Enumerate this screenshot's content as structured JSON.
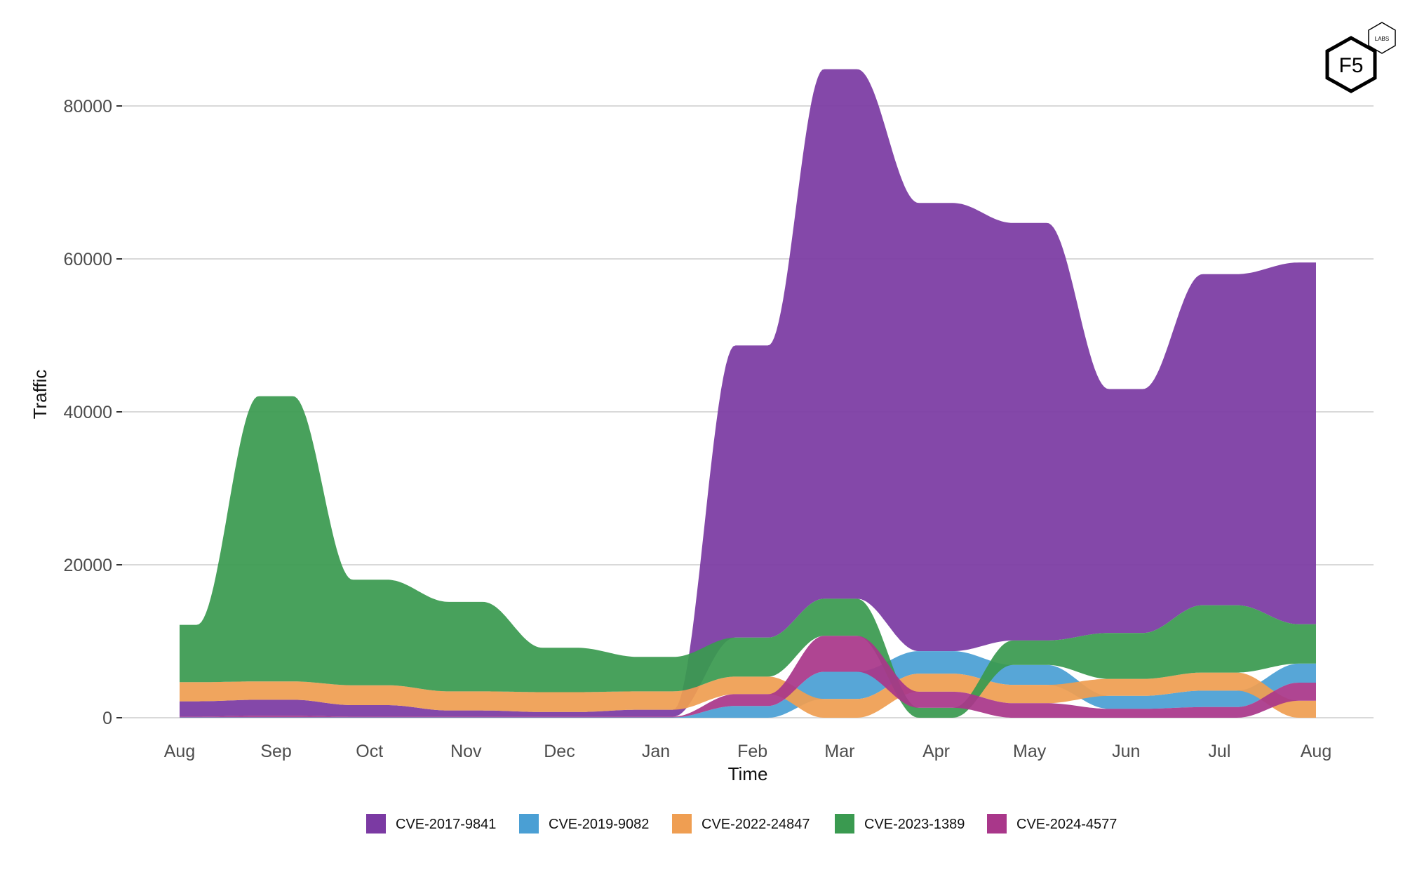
{
  "chart_data": {
    "type": "area",
    "style": "ranked stacked stream (largest on top each month)",
    "xlabel": "Time",
    "ylabel": "Traffic",
    "x": [
      "Aug",
      "Sep",
      "Oct",
      "Nov",
      "Dec",
      "Jan",
      "Feb",
      "Mar",
      "Apr",
      "May",
      "Jun",
      "Jul",
      "Aug"
    ],
    "x_days": [
      0,
      31,
      61,
      92,
      122,
      153,
      184,
      212,
      243,
      273,
      304,
      334,
      365
    ],
    "ylim": [
      0,
      88000
    ],
    "yticks": [
      0,
      20000,
      40000,
      60000,
      80000
    ],
    "ytick_labels": [
      "0",
      "20000",
      "40000",
      "60000",
      "80000"
    ],
    "grid": true,
    "legend_position": "bottom",
    "series": [
      {
        "name": "CVE-2017-9841",
        "color": "#7B3AA3",
        "values": [
          2000,
          2100,
          1500,
          800,
          600,
          900,
          38200,
          69250,
          58600,
          54600,
          31900,
          43300,
          47300
        ]
      },
      {
        "name": "CVE-2019-9082",
        "color": "#4A9FD4",
        "values": [
          50,
          50,
          50,
          50,
          50,
          50,
          1540,
          3550,
          2950,
          2600,
          1690,
          2150,
          2490
        ]
      },
      {
        "name": "CVE-2022-24847",
        "color": "#EF9E52",
        "values": [
          2500,
          2400,
          2600,
          2500,
          2600,
          2400,
          2300,
          2460,
          2360,
          2400,
          2220,
          2370,
          2220
        ]
      },
      {
        "name": "CVE-2023-1389",
        "color": "#3A9A50",
        "values": [
          7500,
          37300,
          13800,
          11700,
          5800,
          4500,
          5100,
          4850,
          1300,
          3200,
          6000,
          8800,
          5150
        ]
      },
      {
        "name": "CVE-2024-4577",
        "color": "#A9378A",
        "values": [
          100,
          200,
          100,
          100,
          100,
          100,
          1540,
          4700,
          2100,
          1900,
          1170,
          1390,
          2370
        ]
      }
    ]
  },
  "logo": {
    "main": "F5",
    "sub": "LABS"
  }
}
